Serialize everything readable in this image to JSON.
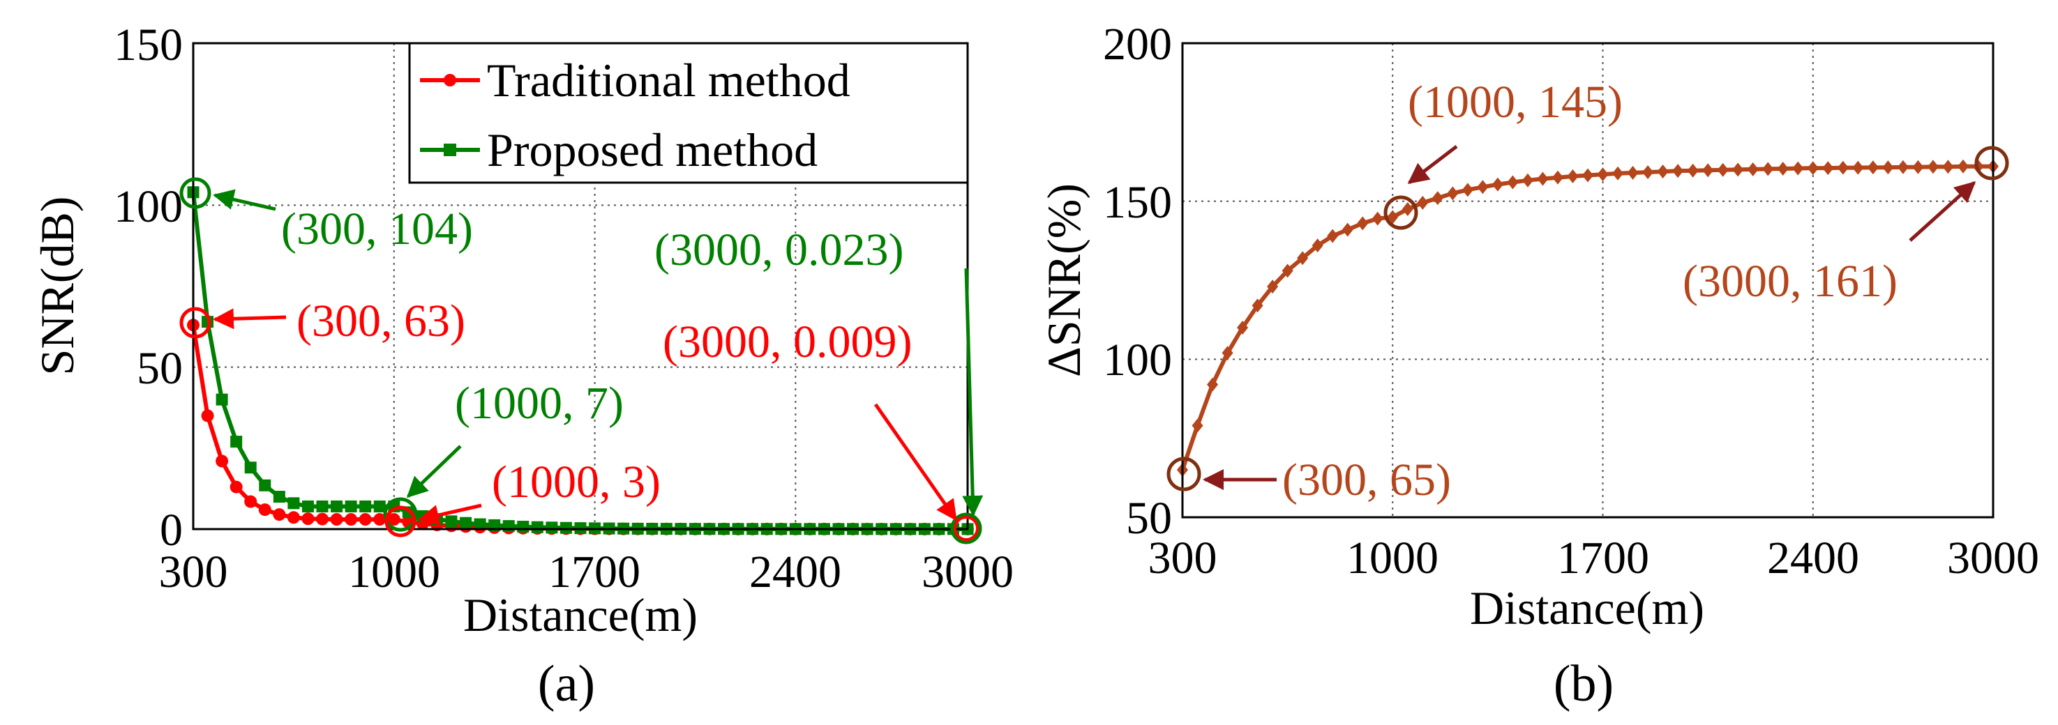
{
  "chart_data": [
    {
      "type": "line",
      "panel": "(a)",
      "xlabel": "Distance(m)",
      "ylabel": "SNR(dB)",
      "xlim": [
        300,
        3000
      ],
      "ylim": [
        0,
        150
      ],
      "xticks": [
        300,
        1000,
        1700,
        2400,
        3000
      ],
      "yticks": [
        0,
        50,
        100,
        150
      ],
      "grid": true,
      "legend_position": "top-right",
      "series": [
        {
          "name": "Traditional method",
          "color": "#ff0000",
          "marker": "circle",
          "x": [
            300,
            350,
            400,
            450,
            500,
            550,
            600,
            650,
            700,
            750,
            800,
            850,
            900,
            950,
            1000,
            1050,
            1100,
            1150,
            1200,
            1250,
            1300,
            1350,
            1400,
            1450,
            1500,
            1550,
            1600,
            1650,
            1700,
            1750,
            1800,
            1850,
            1900,
            1950,
            2000,
            2050,
            2100,
            2150,
            2200,
            2250,
            2300,
            2350,
            2400,
            2450,
            2500,
            2550,
            2600,
            2650,
            2700,
            2750,
            2800,
            2850,
            2900,
            2950,
            3000
          ],
          "y": [
            63,
            35,
            21,
            13,
            8.5,
            6,
            4.5,
            3.6,
            3.2,
            3.1,
            3.0,
            3.0,
            3.0,
            3.0,
            3,
            2.2,
            1.7,
            1.3,
            1.0,
            0.8,
            0.6,
            0.45,
            0.35,
            0.28,
            0.22,
            0.18,
            0.15,
            0.12,
            0.1,
            0.09,
            0.07,
            0.06,
            0.05,
            0.045,
            0.04,
            0.035,
            0.03,
            0.028,
            0.025,
            0.022,
            0.02,
            0.019,
            0.018,
            0.017,
            0.016,
            0.015,
            0.014,
            0.013,
            0.012,
            0.012,
            0.011,
            0.011,
            0.01,
            0.01,
            0.009
          ]
        },
        {
          "name": "Proposed method",
          "color": "#008000",
          "marker": "square",
          "x": [
            300,
            350,
            400,
            450,
            500,
            550,
            600,
            650,
            700,
            750,
            800,
            850,
            900,
            950,
            1000,
            1050,
            1100,
            1150,
            1200,
            1250,
            1300,
            1350,
            1400,
            1450,
            1500,
            1550,
            1600,
            1650,
            1700,
            1750,
            1800,
            1850,
            1900,
            1950,
            2000,
            2050,
            2100,
            2150,
            2200,
            2250,
            2300,
            2350,
            2400,
            2450,
            2500,
            2550,
            2600,
            2650,
            2700,
            2750,
            2800,
            2850,
            2900,
            2950,
            3000
          ],
          "y": [
            104,
            64,
            40,
            27,
            19,
            13.5,
            10,
            8,
            7,
            7,
            7,
            7,
            7,
            7,
            7,
            5.2,
            4,
            3.1,
            2.4,
            1.9,
            1.5,
            1.2,
            0.95,
            0.75,
            0.6,
            0.48,
            0.38,
            0.3,
            0.24,
            0.2,
            0.16,
            0.13,
            0.11,
            0.09,
            0.08,
            0.07,
            0.06,
            0.055,
            0.05,
            0.045,
            0.042,
            0.04,
            0.038,
            0.036,
            0.034,
            0.032,
            0.03,
            0.029,
            0.028,
            0.027,
            0.026,
            0.025,
            0.024,
            0.024,
            0.023
          ]
        }
      ],
      "annotations": [
        {
          "text": "(300, 104)",
          "color": "#008000"
        },
        {
          "text": "(300, 63)",
          "color": "#ff0000"
        },
        {
          "text": "(1000, 7)",
          "color": "#008000"
        },
        {
          "text": "(1000, 3)",
          "color": "#ff0000"
        },
        {
          "text": "(3000, 0.023)",
          "color": "#008000"
        },
        {
          "text": "(3000, 0.009)",
          "color": "#ff0000"
        }
      ]
    },
    {
      "type": "line",
      "panel": "(b)",
      "xlabel": "Distance(m)",
      "ylabel": "ΔSNR(%)",
      "xlim": [
        300,
        3000
      ],
      "ylim": [
        50,
        200
      ],
      "xticks": [
        300,
        1000,
        1700,
        2400,
        3000
      ],
      "yticks": [
        50,
        100,
        150,
        200
      ],
      "grid": true,
      "series": [
        {
          "name": "ΔSNR",
          "color": "#b5451b",
          "marker": "diamond",
          "x": [
            300,
            350,
            400,
            450,
            500,
            550,
            600,
            650,
            700,
            750,
            800,
            850,
            900,
            950,
            1000,
            1050,
            1100,
            1150,
            1200,
            1250,
            1300,
            1350,
            1400,
            1450,
            1500,
            1550,
            1600,
            1650,
            1700,
            1750,
            1800,
            1850,
            1900,
            1950,
            2000,
            2050,
            2100,
            2150,
            2200,
            2250,
            2300,
            2350,
            2400,
            2450,
            2500,
            2550,
            2600,
            2650,
            2700,
            2750,
            2800,
            2850,
            2900,
            2950,
            3000
          ],
          "y": [
            65,
            79,
            92,
            102,
            110,
            117,
            123,
            128,
            132,
            136,
            139,
            141,
            143,
            144.5,
            145,
            147.5,
            149.5,
            151,
            152.5,
            153.6,
            154.5,
            155.3,
            156,
            156.6,
            157.1,
            157.5,
            157.9,
            158.2,
            158.5,
            158.8,
            159,
            159.2,
            159.4,
            159.6,
            159.7,
            159.8,
            159.9,
            160,
            160.1,
            160.2,
            160.3,
            160.4,
            160.5,
            160.5,
            160.6,
            160.6,
            160.7,
            160.7,
            160.8,
            160.8,
            160.9,
            160.9,
            161,
            161,
            161
          ]
        }
      ],
      "annotations": [
        {
          "text": "(1000, 145)",
          "color": "#b5451b"
        },
        {
          "text": "(3000, 161)",
          "color": "#b5451b"
        },
        {
          "text": "(300, 65)",
          "color": "#b5451b"
        }
      ]
    }
  ]
}
